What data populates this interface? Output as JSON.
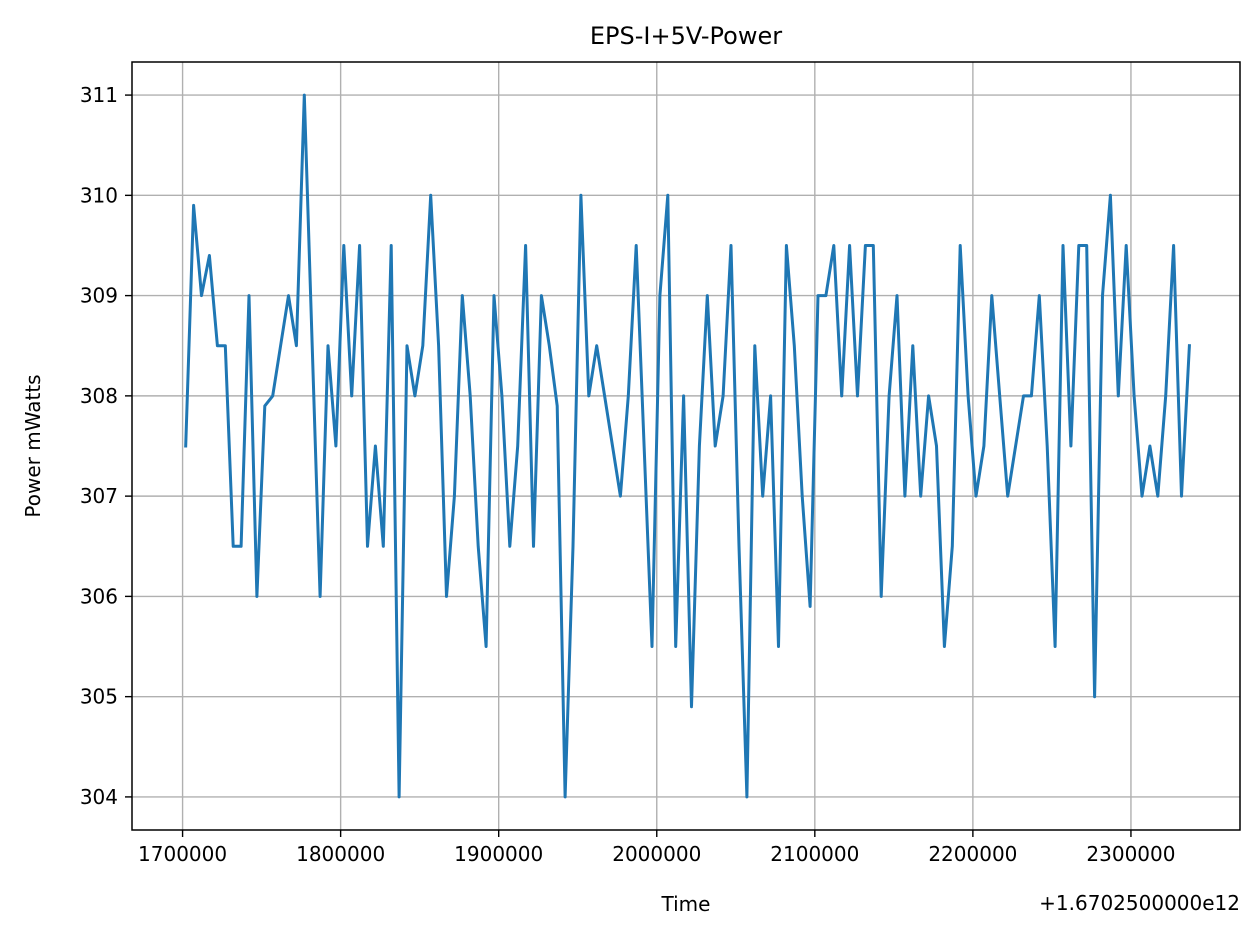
{
  "chart_data": {
    "type": "line",
    "title": "EPS-I+5V-Power",
    "xlabel": "Time",
    "ylabel": "Power mWatts",
    "x_offset_label": "+1.6702500000e12",
    "xlim": [
      1668000,
      2369000
    ],
    "ylim": [
      303.67,
      311.33
    ],
    "grid": true,
    "color": "#1f77b4",
    "xticks": [
      1700000,
      1800000,
      1900000,
      2000000,
      2100000,
      2200000,
      2300000
    ],
    "xtick_labels": [
      "1700000",
      "1800000",
      "1900000",
      "2000000",
      "2100000",
      "2200000",
      "2300000"
    ],
    "yticks": [
      304,
      305,
      306,
      307,
      308,
      309,
      310,
      311
    ],
    "ytick_labels": [
      "304",
      "305",
      "306",
      "307",
      "308",
      "309",
      "310",
      "311"
    ],
    "series": [
      {
        "x": [
          1702000,
          1707000,
          1712000,
          1717000,
          1722000,
          1727000,
          1732000,
          1737000,
          1742000,
          1747000,
          1752000,
          1757000,
          1762000,
          1767000,
          1772000,
          1777000,
          1782000,
          1787000,
          1792000,
          1797000,
          1802000,
          1807000,
          1812000,
          1817000,
          1822000,
          1827000,
          1832000,
          1837000,
          1842000,
          1847000,
          1852000,
          1857000,
          1862000,
          1867000,
          1872000,
          1877000,
          1882000,
          1887000,
          1892000,
          1897000,
          1902000,
          1907000,
          1912000,
          1917000,
          1922000,
          1927000,
          1932000,
          1937000,
          1942000,
          1947000,
          1952000,
          1957000,
          1962000,
          1967000,
          1972000,
          1977000,
          1982000,
          1987000,
          1992000,
          1997000,
          2002000,
          2007000,
          2012000,
          2017000,
          2022000,
          2027000,
          2032000,
          2037000,
          2042000,
          2047000,
          2052000,
          2057000,
          2062000,
          2067000,
          2072000,
          2077000,
          2082000,
          2087000,
          2092000,
          2097000,
          2102000,
          2107000,
          2112000,
          2117000,
          2122000,
          2127000,
          2132000,
          2137000,
          2142000,
          2147000,
          2152000,
          2157000,
          2162000,
          2167000,
          2172000,
          2177000,
          2182000,
          2187000,
          2192000,
          2197000,
          2202000,
          2207000,
          2212000,
          2217000,
          2222000,
          2227000,
          2232000,
          2237000,
          2242000,
          2247000,
          2252000,
          2257000,
          2262000,
          2267000,
          2272000,
          2277000,
          2282000,
          2287000,
          2292000,
          2297000,
          2302000,
          2307000,
          2312000,
          2317000,
          2322000,
          2327000,
          2332000,
          2337000
        ],
        "y": [
          307.5,
          309.9,
          309,
          309.4,
          308.5,
          308.5,
          306.5,
          306.5,
          309,
          306,
          307.9,
          308,
          308.5,
          309,
          308.5,
          311,
          308.5,
          306,
          308.5,
          307.5,
          309.5,
          308,
          309.5,
          306.5,
          307.5,
          306.5,
          309.5,
          304,
          308.5,
          308,
          308.5,
          310,
          308.5,
          306,
          307,
          309,
          308,
          306.5,
          305.5,
          309,
          308,
          306.5,
          307.5,
          309.5,
          306.5,
          309,
          308.5,
          307.9,
          304,
          306.5,
          310,
          308,
          308.5,
          308,
          307.5,
          307,
          308,
          309.5,
          307.5,
          305.5,
          309,
          310,
          305.5,
          308,
          304.9,
          307.5,
          309,
          307.5,
          308,
          309.5,
          306.5,
          304,
          308.5,
          307,
          308,
          305.5,
          309.5,
          308.5,
          307,
          305.9,
          309,
          309,
          309.5,
          308,
          309.5,
          308,
          309.5,
          309.5,
          306,
          308,
          309,
          307,
          308.5,
          307,
          308,
          307.5,
          305.5,
          306.5,
          309.5,
          308,
          307,
          307.5,
          309,
          308,
          307,
          307.5,
          308,
          308,
          309,
          307.5,
          305.5,
          309.5,
          307.5,
          309.5,
          309.5,
          305,
          309,
          310,
          308,
          309.5,
          308,
          307,
          307.5,
          307,
          308,
          309.5,
          307,
          308.5
        ]
      }
    ]
  }
}
